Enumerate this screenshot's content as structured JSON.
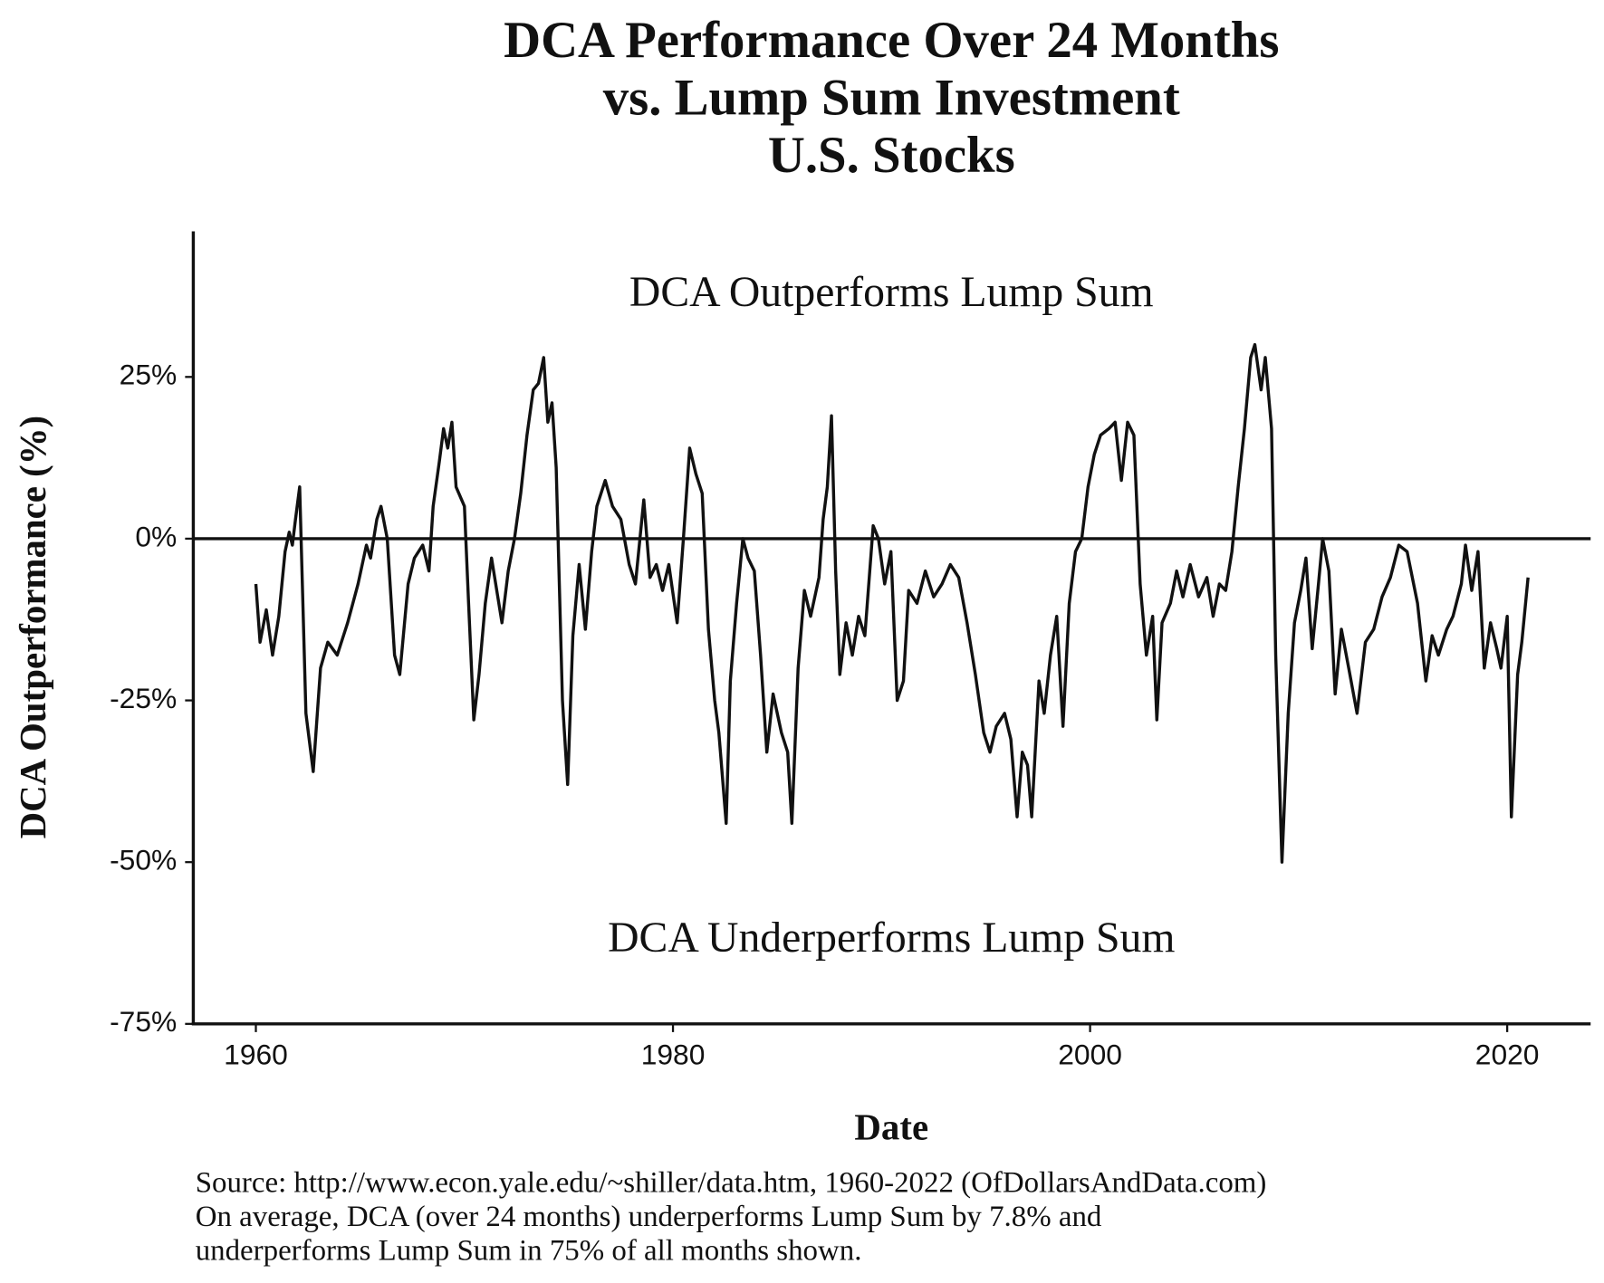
{
  "chart_data": {
    "type": "line",
    "title": [
      "DCA Performance Over 24 Months",
      "vs. Lump Sum Investment",
      "U.S. Stocks"
    ],
    "xlabel": "Date",
    "ylabel": "DCA Outperformance (%)",
    "annotations": [
      "DCA Outperforms Lump Sum",
      "DCA Underperforms Lump Sum"
    ],
    "caption": [
      "Source:  http://www.econ.yale.edu/~shiller/data.htm, 1960-2022 (OfDollarsAndData.com)",
      "On average, DCA (over 24 months) underperforms Lump Sum by 7.8% and",
      "underperforms Lump Sum in 75% of all months shown."
    ],
    "color": "#111111",
    "hline": 0,
    "xlim": [
      1957,
      2024
    ],
    "ylim": [
      -75,
      47.5
    ],
    "xticks": [
      1960,
      1980,
      2000,
      2020
    ],
    "yticks": [
      {
        "value": -75,
        "label": "-75%"
      },
      {
        "value": -50,
        "label": "-50%"
      },
      {
        "value": -25,
        "label": "-25%"
      },
      {
        "value": 0,
        "label": "0%"
      },
      {
        "value": 25,
        "label": "25%"
      }
    ],
    "x": [
      1960.0,
      1960.2,
      1960.5,
      1960.8,
      1961.1,
      1961.4,
      1961.6,
      1961.75,
      1961.9,
      1962.1,
      1962.4,
      1962.75,
      1963.1,
      1963.45,
      1963.9,
      1964.4,
      1964.9,
      1965.3,
      1965.5,
      1965.8,
      1966.0,
      1966.3,
      1966.65,
      1966.9,
      1967.3,
      1967.6,
      1968.0,
      1968.3,
      1968.5,
      1968.8,
      1969.0,
      1969.2,
      1969.4,
      1969.6,
      1970.0,
      1970.2,
      1970.45,
      1970.7,
      1971.0,
      1971.3,
      1971.6,
      1971.8,
      1972.1,
      1972.4,
      1972.7,
      1973.0,
      1973.3,
      1973.55,
      1973.8,
      1974.0,
      1974.2,
      1974.4,
      1974.7,
      1974.95,
      1975.2,
      1975.5,
      1975.8,
      1976.1,
      1976.35,
      1976.75,
      1977.1,
      1977.5,
      1977.9,
      1978.2,
      1978.6,
      1978.9,
      1979.2,
      1979.5,
      1979.8,
      1980.2,
      1980.5,
      1980.8,
      1981.1,
      1981.4,
      1981.7,
      1982.0,
      1982.2,
      1982.55,
      1982.75,
      1983.05,
      1983.35,
      1983.6,
      1983.9,
      1984.2,
      1984.5,
      1984.8,
      1985.2,
      1985.5,
      1985.7,
      1986.0,
      1986.3,
      1986.6,
      1987.0,
      1987.2,
      1987.4,
      1987.6,
      1987.8,
      1988.0,
      1988.3,
      1988.6,
      1988.9,
      1989.2,
      1989.6,
      1989.85,
      1990.15,
      1990.45,
      1990.75,
      1991.05,
      1991.3,
      1991.7,
      1992.1,
      1992.5,
      1992.9,
      1993.3,
      1993.7,
      1994.1,
      1994.5,
      1994.9,
      1995.2,
      1995.5,
      1995.9,
      1996.2,
      1996.5,
      1996.75,
      1997.0,
      1997.2,
      1997.55,
      1997.8,
      1998.1,
      1998.4,
      1998.7,
      1999.0,
      1999.3,
      1999.6,
      1999.9,
      2000.2,
      2000.5,
      2000.9,
      2001.2,
      2001.5,
      2001.8,
      2002.1,
      2002.4,
      2002.7,
      2003.0,
      2003.2,
      2003.45,
      2003.85,
      2004.15,
      2004.45,
      2004.8,
      2005.2,
      2005.6,
      2005.9,
      2006.2,
      2006.5,
      2006.8,
      2007.1,
      2007.4,
      2007.7,
      2007.9,
      2008.2,
      2008.4,
      2008.7,
      2008.9,
      2009.2,
      2009.5,
      2009.8,
      2010.1,
      2010.35,
      2010.65,
      2010.95,
      2011.15,
      2011.45,
      2011.75,
      2012.05,
      2012.4,
      2012.8,
      2013.2,
      2013.6,
      2014.0,
      2014.4,
      2014.8,
      2015.2,
      2015.7,
      2016.1,
      2016.4,
      2016.7,
      2017.1,
      2017.4,
      2017.8,
      2018.0,
      2018.3,
      2018.6,
      2018.9,
      2019.2,
      2019.5,
      2019.7,
      2020.0,
      2020.2,
      2020.5,
      2020.7,
      2021.0
    ],
    "values": [
      -7,
      -16,
      -11,
      -18,
      -12,
      -2,
      1,
      -1,
      3,
      8,
      -27,
      -36,
      -20,
      -16,
      -18,
      -13,
      -7,
      -1,
      -3,
      3,
      5,
      0,
      -18,
      -21,
      -7,
      -3,
      -1,
      -5,
      5,
      12,
      17,
      14,
      18,
      8,
      5,
      -10,
      -28,
      -21,
      -10,
      -3,
      -9,
      -13,
      -5,
      0,
      7,
      16,
      23,
      24,
      28,
      18,
      21,
      11,
      -25,
      -38,
      -15,
      -4,
      -14,
      -2,
      5,
      9,
      5,
      3,
      -4,
      -7,
      6,
      -6,
      -4,
      -8,
      -4,
      -13,
      0,
      14,
      10,
      7,
      -14,
      -25,
      -30,
      -44,
      -22,
      -10,
      0,
      -3,
      -5,
      -18,
      -33,
      -24,
      -30,
      -33,
      -44,
      -20,
      -8,
      -12,
      -6,
      3,
      8,
      19,
      -5,
      -21,
      -13,
      -18,
      -12,
      -15,
      2,
      0,
      -7,
      -2,
      -25,
      -22,
      -8,
      -10,
      -5,
      -9,
      -7,
      -4,
      -6,
      -13,
      -21,
      -30,
      -33,
      -29,
      -27,
      -31,
      -43,
      -33,
      -35,
      -43,
      -22,
      -27,
      -18,
      -12,
      -29,
      -10,
      -2,
      0,
      8,
      13,
      16,
      17,
      18,
      9,
      18,
      16,
      -7,
      -18,
      -12,
      -28,
      -13,
      -10,
      -5,
      -9,
      -4,
      -9,
      -6,
      -12,
      -7,
      -8,
      -2,
      8,
      17,
      28,
      30,
      23,
      28,
      17,
      -18,
      -50,
      -27,
      -13,
      -8,
      -3,
      -17,
      -7,
      0,
      -5,
      -24,
      -14,
      -20,
      -27,
      -16,
      -14,
      -9,
      -6,
      -1,
      -2,
      -10,
      -22,
      -15,
      -18,
      -14,
      -12,
      -7,
      -1,
      -8,
      -2,
      -20,
      -13,
      -17,
      -20,
      -12,
      -43,
      -21,
      -16,
      -6
    ]
  }
}
